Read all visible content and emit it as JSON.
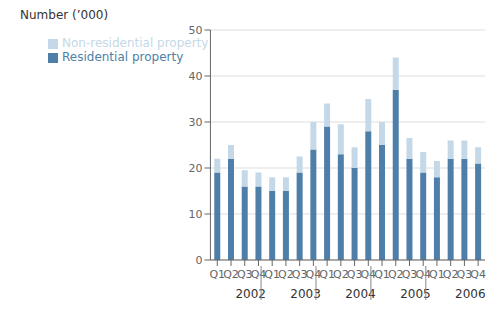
{
  "chart_data": {
    "type": "bar",
    "ylabel": "Number (’000)",
    "categories": [
      "Q1",
      "Q2",
      "Q3",
      "Q4",
      "Q1",
      "Q2",
      "Q3",
      "Q4",
      "Q1",
      "Q2",
      "Q3",
      "Q4",
      "Q1",
      "Q2",
      "Q3",
      "Q4",
      "Q1",
      "Q2",
      "Q3",
      "Q4"
    ],
    "annotations": [
      "2002",
      "2003",
      "2004",
      "2005",
      "2006"
    ],
    "series": [
      {
        "name": "Residential property",
        "color": "#4d7fa8",
        "values": [
          19,
          22,
          16,
          16,
          15,
          15,
          19,
          24,
          29,
          23,
          20,
          28,
          25,
          37,
          22,
          19,
          18,
          22,
          22,
          21
        ]
      },
      {
        "name": "Non-residential property",
        "color": "#c5d8e8",
        "values": [
          3,
          3,
          3.5,
          3,
          3,
          3,
          3.5,
          6,
          5,
          6.5,
          4.5,
          7,
          5,
          7,
          4.5,
          4.5,
          3.5,
          4,
          4,
          3.5
        ]
      }
    ],
    "stacked": true,
    "ylim": [
      0,
      50
    ],
    "yticks": [
      0,
      10,
      20,
      30,
      40,
      50
    ],
    "grid": true,
    "legend": "upper left"
  }
}
